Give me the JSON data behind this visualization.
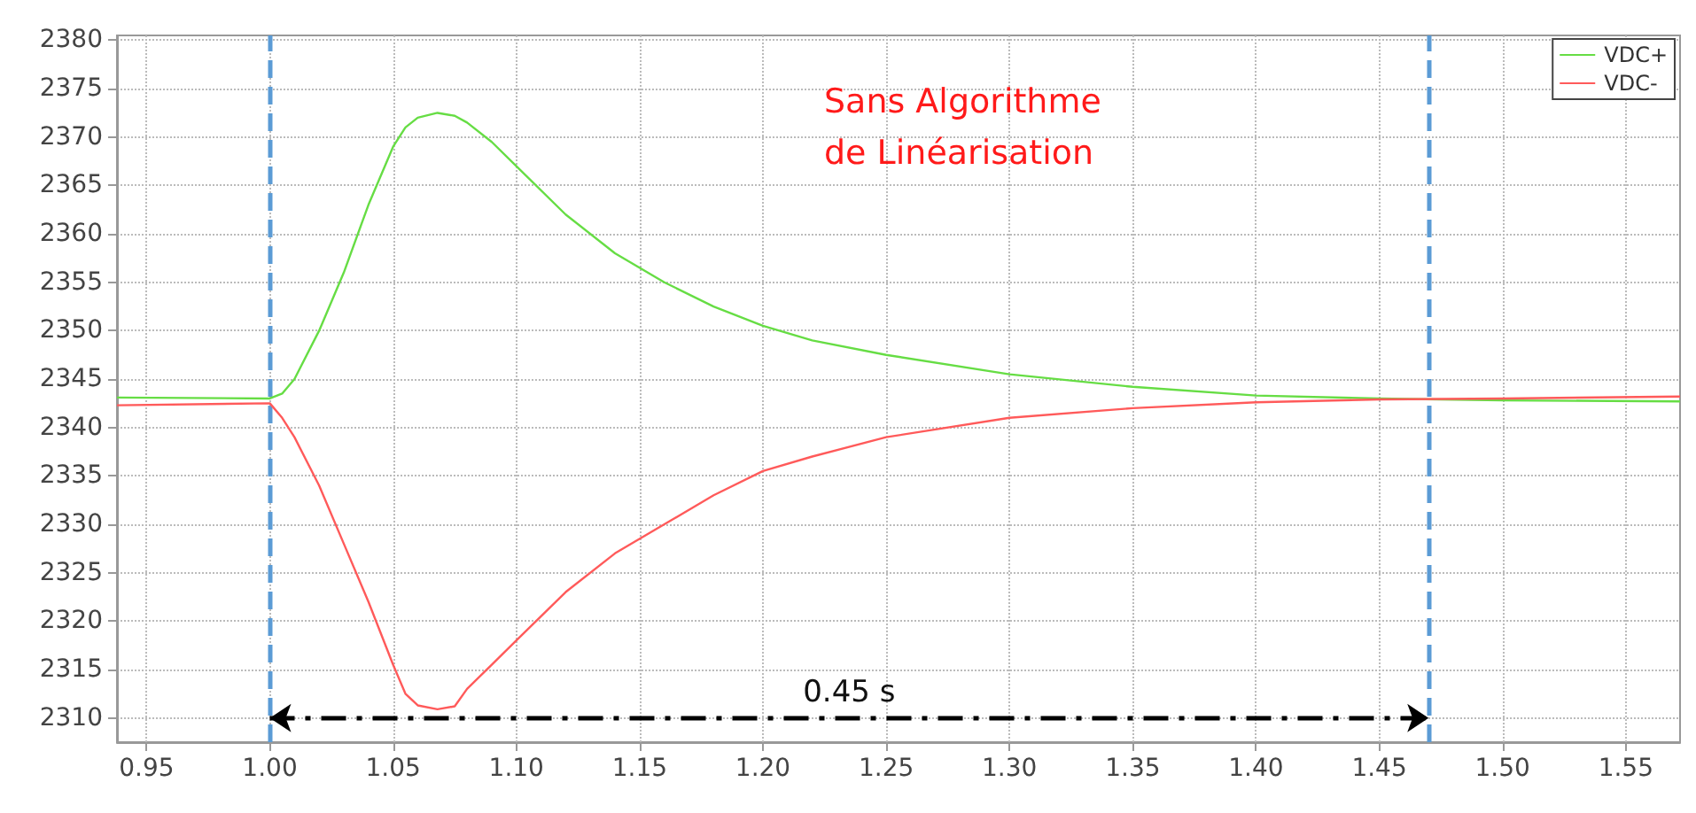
{
  "chart_data": {
    "type": "line",
    "title": "Sans Algorithme de Linéarisation",
    "xlim": [
      0.938,
      1.572
    ],
    "ylim": [
      2307.5,
      2380.5
    ],
    "xticks": [
      {
        "value": 0.95,
        "label": "0.95"
      },
      {
        "value": 1.0,
        "label": "1.00"
      },
      {
        "value": 1.05,
        "label": "1.05"
      },
      {
        "value": 1.1,
        "label": "1.10"
      },
      {
        "value": 1.15,
        "label": "1.15"
      },
      {
        "value": 1.2,
        "label": "1.20"
      },
      {
        "value": 1.25,
        "label": "1.25"
      },
      {
        "value": 1.3,
        "label": "1.30"
      },
      {
        "value": 1.35,
        "label": "1.35"
      },
      {
        "value": 1.4,
        "label": "1.40"
      },
      {
        "value": 1.45,
        "label": "1.45"
      },
      {
        "value": 1.5,
        "label": "1.50"
      },
      {
        "value": 1.55,
        "label": "1.55"
      }
    ],
    "yticks": [
      2310,
      2315,
      2320,
      2325,
      2330,
      2335,
      2340,
      2345,
      2350,
      2355,
      2360,
      2365,
      2370,
      2375,
      2380
    ],
    "grid": true,
    "legend": "top right",
    "marker": "none",
    "line_style": "solid",
    "x": [
      0.938,
      1.0,
      1.005,
      1.01,
      1.02,
      1.03,
      1.04,
      1.05,
      1.055,
      1.06,
      1.068,
      1.075,
      1.08,
      1.09,
      1.1,
      1.12,
      1.14,
      1.16,
      1.18,
      1.2,
      1.22,
      1.25,
      1.3,
      1.35,
      1.4,
      1.45,
      1.5,
      1.572
    ],
    "series": [
      {
        "name": "VDC+",
        "color": "#66dd44",
        "values": [
          2343.1,
          2343,
          2343.5,
          2345,
          2350,
          2356,
          2363,
          2369,
          2371,
          2372,
          2372.5,
          2372.2,
          2371.5,
          2369.5,
          2367,
          2362,
          2358,
          2355,
          2352.5,
          2350.5,
          2349,
          2347.5,
          2345.5,
          2344.2,
          2343.3,
          2343,
          2342.8,
          2342.7
        ]
      },
      {
        "name": "VDC-",
        "color": "#ff5a5a",
        "values": [
          2342.3,
          2342.5,
          2341,
          2339,
          2334,
          2328,
          2322,
          2315.5,
          2312.5,
          2311.3,
          2310.9,
          2311.2,
          2313,
          2315.5,
          2318,
          2323,
          2327,
          2330,
          2333,
          2335.5,
          2337,
          2339,
          2341,
          2342,
          2342.6,
          2342.9,
          2343,
          2343.2
        ]
      }
    ],
    "ref_lines": [
      {
        "axis": "x",
        "value": 1.0,
        "color": "#5b9bd5",
        "line_style": "dashed"
      },
      {
        "axis": "x",
        "value": 1.47,
        "color": "#5b9bd5",
        "line_style": "dashed"
      }
    ],
    "annotations": [
      "0.45 s"
    ]
  }
}
